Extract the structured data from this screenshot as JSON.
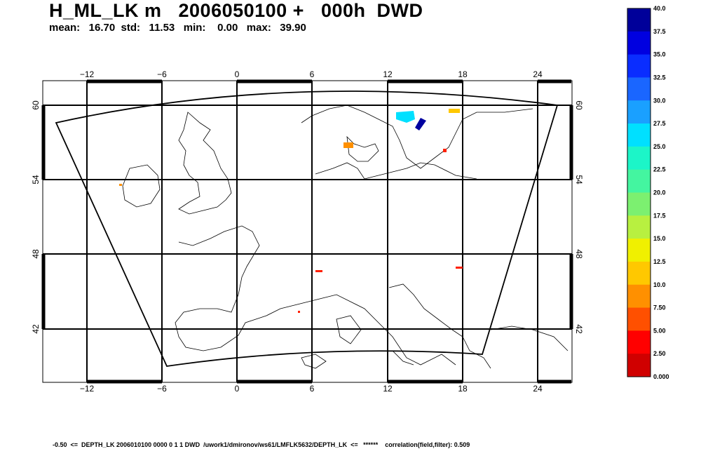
{
  "header": {
    "title": "H_ML_LK m   2006050100 +   000h  DWD",
    "stats": "mean:   16.70  std:   11.53   min:    0.00   max:   39.90"
  },
  "map": {
    "lon_ticks": [
      "−12",
      "−6",
      "0",
      "6",
      "12",
      "18",
      "24"
    ],
    "lat_ticks": [
      "60",
      "54",
      "48",
      "42"
    ]
  },
  "colorbar": {
    "labels": [
      "40.0",
      "37.5",
      "35.0",
      "32.5",
      "30.0",
      "27.5",
      "25.0",
      "22.5",
      "20.0",
      "17.5",
      "15.0",
      "12.5",
      "10.0",
      "7.50",
      "5.00",
      "2.50",
      "0.000"
    ],
    "colors": [
      "#00009a",
      "#0000e0",
      "#0a2dff",
      "#1a66ff",
      "#1aa0ff",
      "#00e0ff",
      "#1cf5c8",
      "#44f5a0",
      "#7cf070",
      "#b8f040",
      "#f0f000",
      "#ffc800",
      "#ff9000",
      "#ff5000",
      "#ff0000",
      "#d00000",
      "#8a0000"
    ]
  },
  "footer": {
    "text": "-0.50  <=  DEPTH_LK 2006010100 0000 0 1 1 DWD  /uwork1/dmironov/ws61/LMFLK5632/DEPTH_LK  <=   ******    correlation(field,filter): 0.509"
  }
}
